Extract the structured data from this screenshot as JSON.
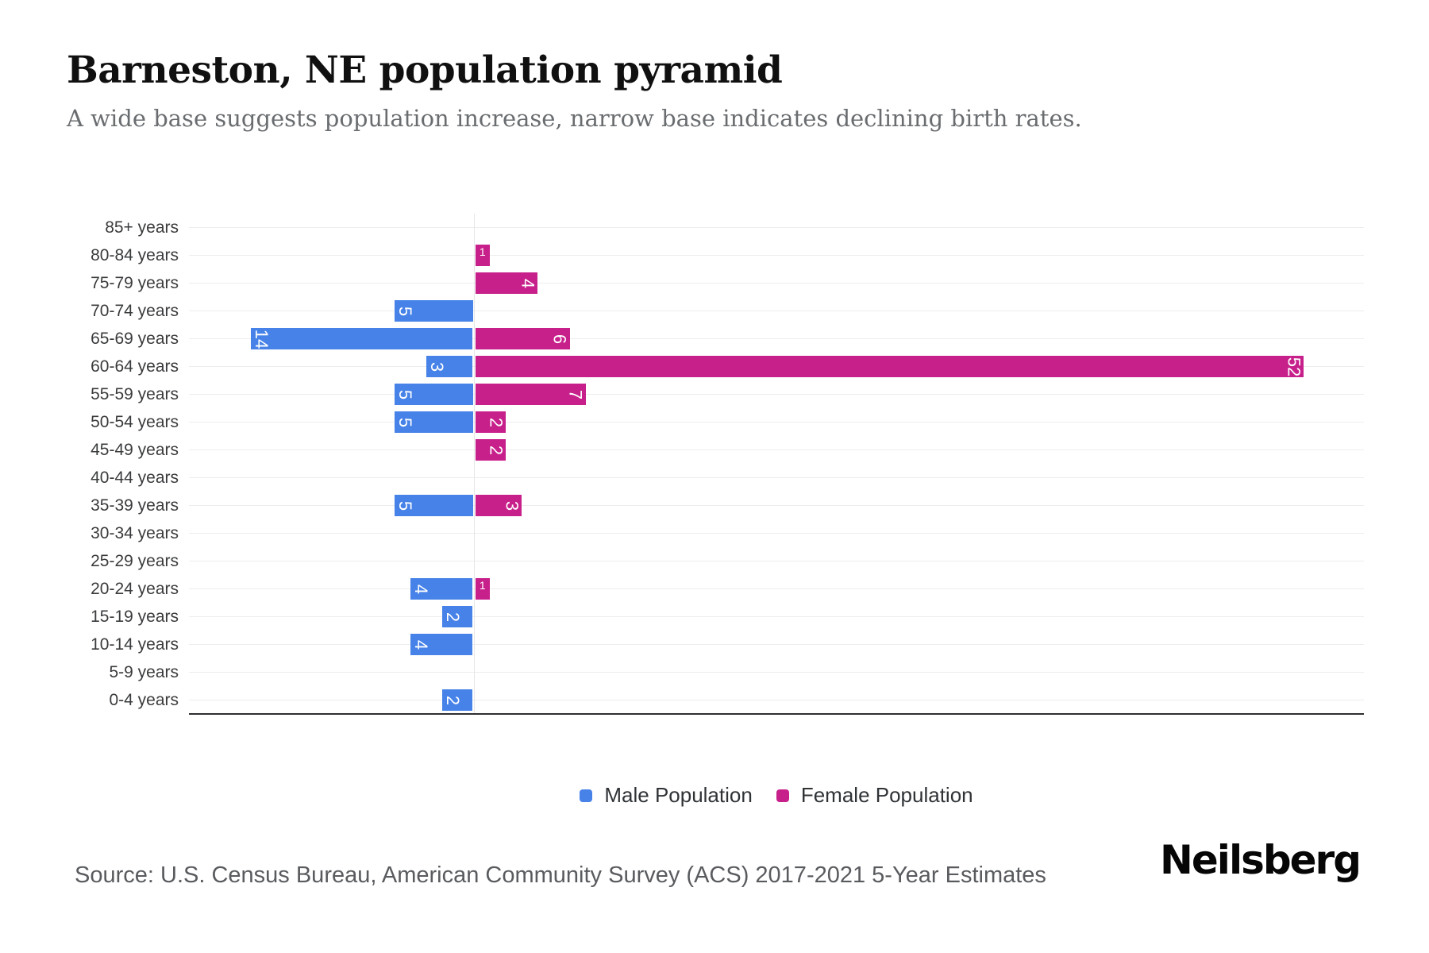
{
  "header": {
    "title": "Barneston, NE population pyramid",
    "subtitle": "A wide base suggests population increase, narrow base indicates declining birth rates."
  },
  "chart_data": {
    "type": "bar",
    "variant": "population-pyramid",
    "title": "Barneston, NE population pyramid",
    "categories": [
      "85+ years",
      "80-84 years",
      "75-79 years",
      "70-74 years",
      "65-69 years",
      "60-64 years",
      "55-59 years",
      "50-54 years",
      "45-49 years",
      "40-44 years",
      "35-39 years",
      "30-34 years",
      "25-29 years",
      "20-24 years",
      "15-19 years",
      "10-14 years",
      "5-9 years",
      "0-4 years"
    ],
    "series": [
      {
        "name": "Male Population",
        "color": "#4682E8",
        "direction": "left",
        "values": [
          0,
          0,
          0,
          5,
          14,
          3,
          5,
          5,
          0,
          0,
          5,
          0,
          0,
          4,
          2,
          4,
          0,
          2
        ]
      },
      {
        "name": "Female Population",
        "color": "#C7208B",
        "direction": "right",
        "values": [
          0,
          1,
          4,
          0,
          6,
          52,
          7,
          2,
          2,
          0,
          3,
          0,
          0,
          1,
          0,
          0,
          0,
          0
        ]
      }
    ],
    "xlabel": "",
    "ylabel": "",
    "x_axis_ticks_visible": false,
    "grid": true,
    "legend_position": "bottom"
  },
  "legend": {
    "items": [
      {
        "label": "Male Population",
        "color": "#4682E8"
      },
      {
        "label": "Female Population",
        "color": "#C7208B"
      }
    ]
  },
  "footer": {
    "source": "Source: U.S. Census Bureau, American Community Survey (ACS) 2017-2021 5-Year Estimates",
    "brand": "Neilsberg"
  }
}
